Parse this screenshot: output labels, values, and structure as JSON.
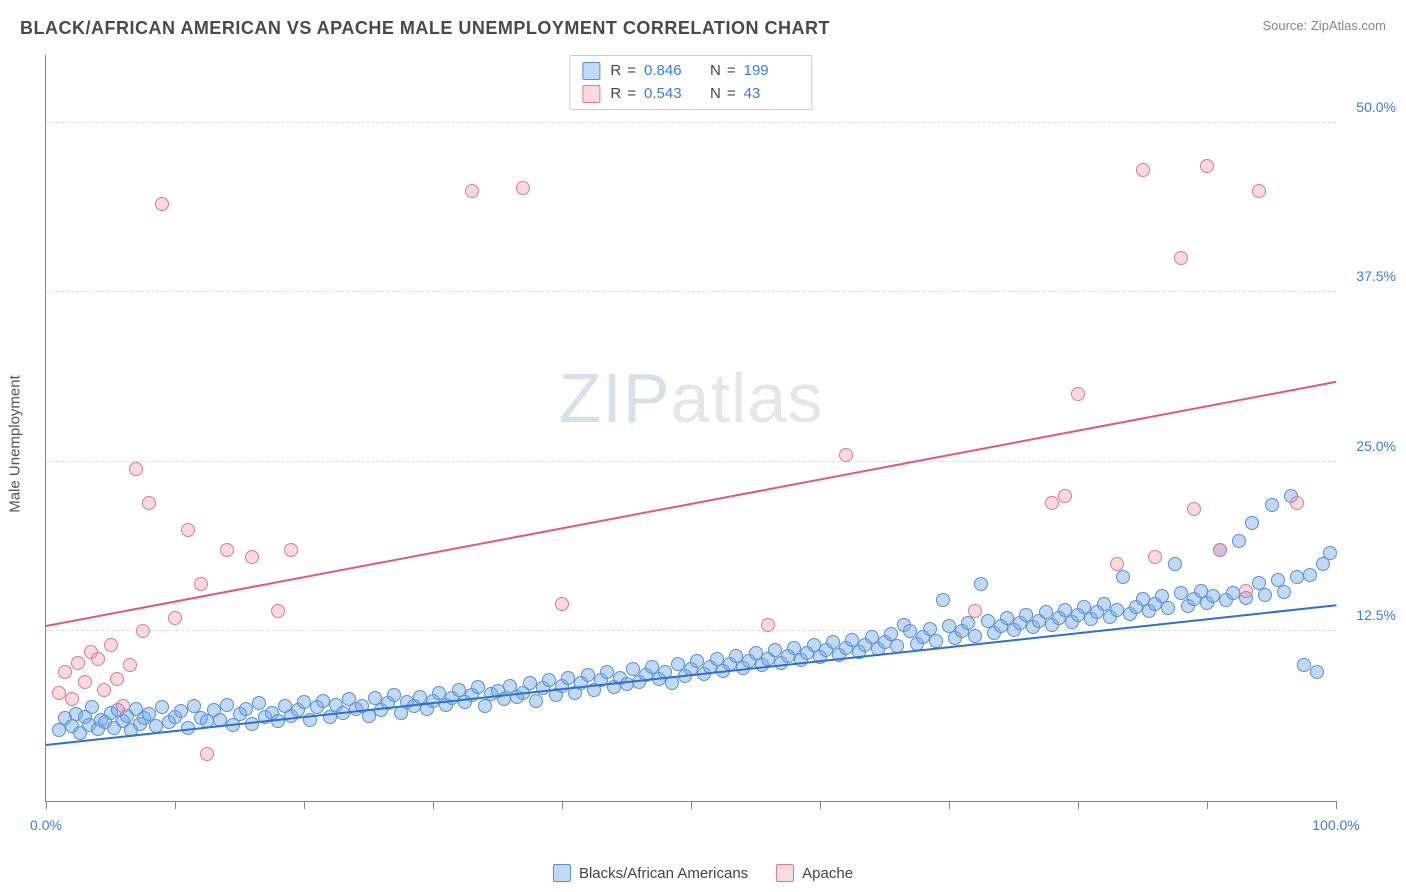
{
  "header": {
    "title": "BLACK/AFRICAN AMERICAN VS APACHE MALE UNEMPLOYMENT CORRELATION CHART",
    "source_prefix": "Source: ",
    "source_name": "ZipAtlas.com"
  },
  "watermark": {
    "z": "ZIP",
    "rest": "atlas"
  },
  "chart": {
    "type": "scatter",
    "y_axis_label": "Male Unemployment",
    "background_color": "#ffffff",
    "grid_color": "#dddddd",
    "axis_color": "#888888",
    "font_color_values": "#3b7dd8",
    "xlim": [
      0,
      100
    ],
    "ylim": [
      0,
      55
    ],
    "x_ticks": [
      0,
      10,
      20,
      30,
      40,
      50,
      60,
      70,
      80,
      90,
      100
    ],
    "x_tick_labels": {
      "0": "0.0%",
      "100": "100.0%"
    },
    "y_ticks": [
      12.5,
      25.0,
      37.5,
      50.0
    ],
    "y_tick_labels": [
      "12.5%",
      "25.0%",
      "37.5%",
      "50.0%"
    ],
    "point_radius": 7,
    "point_border_width": 1.2,
    "series": [
      {
        "name": "Blacks/African Americans",
        "key": "blue",
        "fill": "rgba(120,170,230,0.45)",
        "stroke": "#5a8fd6",
        "R": "0.846",
        "N": "199",
        "trend": {
          "x1": 0,
          "y1": 4.2,
          "x2": 100,
          "y2": 14.5,
          "color": "#2f6fd0",
          "width": 2
        },
        "points": [
          [
            1,
            5.2
          ],
          [
            1.5,
            6.1
          ],
          [
            2,
            5.5
          ],
          [
            2.3,
            6.4
          ],
          [
            2.6,
            5.0
          ],
          [
            3,
            6.2
          ],
          [
            3.3,
            5.6
          ],
          [
            3.6,
            6.9
          ],
          [
            4,
            5.3
          ],
          [
            4.3,
            6.0
          ],
          [
            4.6,
            5.8
          ],
          [
            5,
            6.5
          ],
          [
            5.3,
            5.4
          ],
          [
            5.6,
            6.7
          ],
          [
            6,
            5.9
          ],
          [
            6.3,
            6.3
          ],
          [
            6.6,
            5.2
          ],
          [
            7,
            6.8
          ],
          [
            7.3,
            5.7
          ],
          [
            7.6,
            6.1
          ],
          [
            8,
            6.4
          ],
          [
            8.5,
            5.5
          ],
          [
            9,
            6.9
          ],
          [
            9.5,
            5.8
          ],
          [
            10,
            6.2
          ],
          [
            10.5,
            6.6
          ],
          [
            11,
            5.4
          ],
          [
            11.5,
            7.0
          ],
          [
            12,
            6.1
          ],
          [
            12.5,
            5.9
          ],
          [
            13,
            6.7
          ],
          [
            13.5,
            6.0
          ],
          [
            14,
            7.1
          ],
          [
            14.5,
            5.6
          ],
          [
            15,
            6.4
          ],
          [
            15.5,
            6.8
          ],
          [
            16,
            5.7
          ],
          [
            16.5,
            7.2
          ],
          [
            17,
            6.2
          ],
          [
            17.5,
            6.5
          ],
          [
            18,
            5.9
          ],
          [
            18.5,
            7.0
          ],
          [
            19,
            6.3
          ],
          [
            19.5,
            6.7
          ],
          [
            20,
            7.3
          ],
          [
            20.5,
            6.0
          ],
          [
            21,
            6.9
          ],
          [
            21.5,
            7.4
          ],
          [
            22,
            6.2
          ],
          [
            22.5,
            7.1
          ],
          [
            23,
            6.5
          ],
          [
            23.5,
            7.5
          ],
          [
            24,
            6.8
          ],
          [
            24.5,
            7.0
          ],
          [
            25,
            6.3
          ],
          [
            25.5,
            7.6
          ],
          [
            26,
            6.7
          ],
          [
            26.5,
            7.2
          ],
          [
            27,
            7.8
          ],
          [
            27.5,
            6.5
          ],
          [
            28,
            7.3
          ],
          [
            28.5,
            7.0
          ],
          [
            29,
            7.7
          ],
          [
            29.5,
            6.8
          ],
          [
            30,
            7.4
          ],
          [
            30.5,
            8.0
          ],
          [
            31,
            7.1
          ],
          [
            31.5,
            7.6
          ],
          [
            32,
            8.2
          ],
          [
            32.5,
            7.3
          ],
          [
            33,
            7.8
          ],
          [
            33.5,
            8.4
          ],
          [
            34,
            7.0
          ],
          [
            34.5,
            7.9
          ],
          [
            35,
            8.1
          ],
          [
            35.5,
            7.5
          ],
          [
            36,
            8.5
          ],
          [
            36.5,
            7.7
          ],
          [
            37,
            8.0
          ],
          [
            37.5,
            8.7
          ],
          [
            38,
            7.4
          ],
          [
            38.5,
            8.3
          ],
          [
            39,
            8.9
          ],
          [
            39.5,
            7.8
          ],
          [
            40,
            8.5
          ],
          [
            40.5,
            9.1
          ],
          [
            41,
            8.0
          ],
          [
            41.5,
            8.7
          ],
          [
            42,
            9.3
          ],
          [
            42.5,
            8.2
          ],
          [
            43,
            8.9
          ],
          [
            43.5,
            9.5
          ],
          [
            44,
            8.4
          ],
          [
            44.5,
            9.1
          ],
          [
            45,
            8.6
          ],
          [
            45.5,
            9.7
          ],
          [
            46,
            8.8
          ],
          [
            46.5,
            9.3
          ],
          [
            47,
            9.9
          ],
          [
            47.5,
            9.0
          ],
          [
            48,
            9.5
          ],
          [
            48.5,
            8.7
          ],
          [
            49,
            10.1
          ],
          [
            49.5,
            9.2
          ],
          [
            50,
            9.7
          ],
          [
            50.5,
            10.3
          ],
          [
            51,
            9.4
          ],
          [
            51.5,
            9.9
          ],
          [
            52,
            10.5
          ],
          [
            52.5,
            9.6
          ],
          [
            53,
            10.1
          ],
          [
            53.5,
            10.7
          ],
          [
            54,
            9.8
          ],
          [
            54.5,
            10.3
          ],
          [
            55,
            10.9
          ],
          [
            55.5,
            10.0
          ],
          [
            56,
            10.5
          ],
          [
            56.5,
            11.1
          ],
          [
            57,
            10.2
          ],
          [
            57.5,
            10.7
          ],
          [
            58,
            11.3
          ],
          [
            58.5,
            10.4
          ],
          [
            59,
            10.9
          ],
          [
            59.5,
            11.5
          ],
          [
            60,
            10.6
          ],
          [
            60.5,
            11.1
          ],
          [
            61,
            11.7
          ],
          [
            61.5,
            10.8
          ],
          [
            62,
            11.3
          ],
          [
            62.5,
            11.9
          ],
          [
            63,
            11.0
          ],
          [
            63.5,
            11.5
          ],
          [
            64,
            12.1
          ],
          [
            64.5,
            11.2
          ],
          [
            65,
            11.7
          ],
          [
            65.5,
            12.3
          ],
          [
            66,
            11.4
          ],
          [
            66.5,
            13.0
          ],
          [
            67,
            12.5
          ],
          [
            67.5,
            11.6
          ],
          [
            68,
            12.1
          ],
          [
            68.5,
            12.7
          ],
          [
            69,
            11.8
          ],
          [
            69.5,
            14.8
          ],
          [
            70,
            12.9
          ],
          [
            70.5,
            12.0
          ],
          [
            71,
            12.5
          ],
          [
            71.5,
            13.1
          ],
          [
            72,
            12.2
          ],
          [
            72.5,
            16.0
          ],
          [
            73,
            13.3
          ],
          [
            73.5,
            12.4
          ],
          [
            74,
            12.9
          ],
          [
            74.5,
            13.5
          ],
          [
            75,
            12.6
          ],
          [
            75.5,
            13.1
          ],
          [
            76,
            13.7
          ],
          [
            76.5,
            12.8
          ],
          [
            77,
            13.3
          ],
          [
            77.5,
            13.9
          ],
          [
            78,
            13.0
          ],
          [
            78.5,
            13.5
          ],
          [
            79,
            14.1
          ],
          [
            79.5,
            13.2
          ],
          [
            80,
            13.7
          ],
          [
            80.5,
            14.3
          ],
          [
            81,
            13.4
          ],
          [
            81.5,
            13.9
          ],
          [
            82,
            14.5
          ],
          [
            82.5,
            13.6
          ],
          [
            83,
            14.1
          ],
          [
            83.5,
            16.5
          ],
          [
            84,
            13.8
          ],
          [
            84.5,
            14.3
          ],
          [
            85,
            14.9
          ],
          [
            85.5,
            14.0
          ],
          [
            86,
            14.5
          ],
          [
            86.5,
            15.1
          ],
          [
            87,
            14.2
          ],
          [
            87.5,
            17.5
          ],
          [
            88,
            15.3
          ],
          [
            88.5,
            14.4
          ],
          [
            89,
            14.9
          ],
          [
            89.5,
            15.5
          ],
          [
            90,
            14.6
          ],
          [
            90.5,
            15.1
          ],
          [
            91,
            18.5
          ],
          [
            91.5,
            14.8
          ],
          [
            92,
            15.3
          ],
          [
            92.5,
            19.2
          ],
          [
            93,
            15.0
          ],
          [
            93.5,
            20.5
          ],
          [
            94,
            16.1
          ],
          [
            94.5,
            15.2
          ],
          [
            95,
            21.8
          ],
          [
            95.5,
            16.3
          ],
          [
            96,
            15.4
          ],
          [
            96.5,
            22.5
          ],
          [
            97,
            16.5
          ],
          [
            97.5,
            10.0
          ],
          [
            98,
            16.7
          ],
          [
            98.5,
            9.5
          ],
          [
            99,
            17.5
          ],
          [
            99.5,
            18.3
          ]
        ]
      },
      {
        "name": "Apache",
        "key": "pink",
        "fill": "rgba(240,150,170,0.35)",
        "stroke": "#e07a95",
        "R": "0.543",
        "N": "43",
        "trend": {
          "x1": 0,
          "y1": 13.0,
          "x2": 100,
          "y2": 31.0,
          "color": "#e05a7a",
          "width": 2
        },
        "points": [
          [
            1,
            8.0
          ],
          [
            1.5,
            9.5
          ],
          [
            2,
            7.5
          ],
          [
            2.5,
            10.2
          ],
          [
            3,
            8.8
          ],
          [
            3.5,
            11.0
          ],
          [
            4,
            10.5
          ],
          [
            4.5,
            8.2
          ],
          [
            5,
            11.5
          ],
          [
            5.5,
            9.0
          ],
          [
            6,
            7.0
          ],
          [
            6.5,
            10.0
          ],
          [
            7,
            24.5
          ],
          [
            7.5,
            12.5
          ],
          [
            8,
            22.0
          ],
          [
            9,
            44.0
          ],
          [
            10,
            13.5
          ],
          [
            11,
            20.0
          ],
          [
            12,
            16.0
          ],
          [
            12.5,
            3.5
          ],
          [
            14,
            18.5
          ],
          [
            16,
            18.0
          ],
          [
            18,
            14.0
          ],
          [
            19,
            18.5
          ],
          [
            33,
            45.0
          ],
          [
            37,
            45.2
          ],
          [
            40,
            14.5
          ],
          [
            56,
            13.0
          ],
          [
            62,
            25.5
          ],
          [
            72,
            14.0
          ],
          [
            78,
            22.0
          ],
          [
            79,
            22.5
          ],
          [
            80,
            30.0
          ],
          [
            83,
            17.5
          ],
          [
            85,
            46.5
          ],
          [
            86,
            18.0
          ],
          [
            88,
            40.0
          ],
          [
            89,
            21.5
          ],
          [
            90,
            46.8
          ],
          [
            91,
            18.5
          ],
          [
            93,
            15.5
          ],
          [
            94,
            45.0
          ],
          [
            97,
            22.0
          ]
        ]
      }
    ]
  },
  "legend_top": {
    "r_label": "R",
    "n_label": "N",
    "equals": "="
  },
  "legend_bottom": {
    "items": [
      "Blacks/African Americans",
      "Apache"
    ]
  }
}
